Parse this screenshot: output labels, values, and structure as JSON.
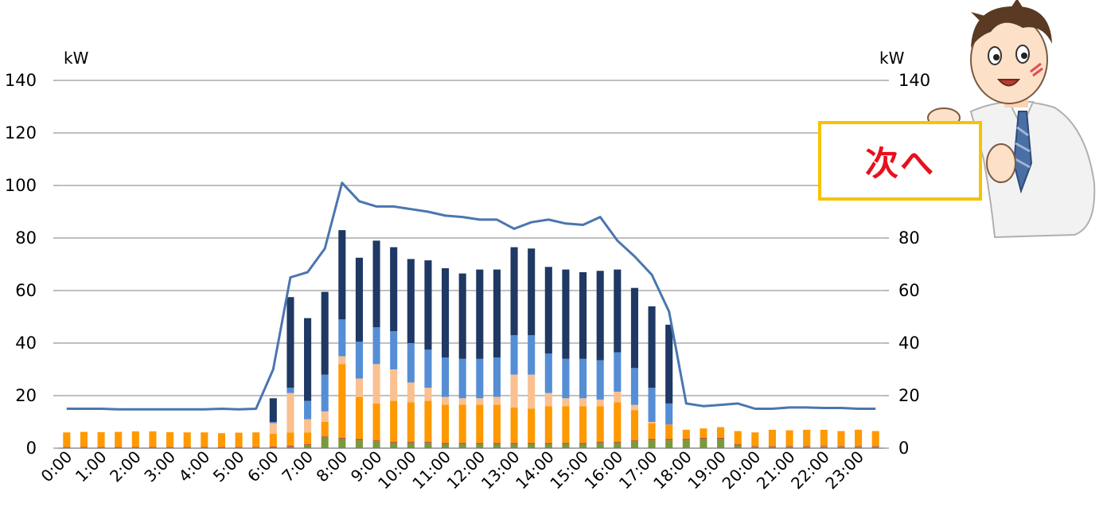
{
  "next_button": {
    "label": "次へ"
  },
  "mascot": {
    "icon": "businessman-holding-sign-icon"
  },
  "colors": {
    "line": "#4a76b0",
    "series": [
      "#7a9a3a",
      "#c0504d",
      "#ff9900",
      "#fac090",
      "#558ed5",
      "#1f3864"
    ],
    "grid": "#9a9a9a",
    "sign_border": "#f5c400",
    "sign_text": "#e8101e"
  },
  "chart_data": {
    "type": "bar",
    "stacked": true,
    "yunit_left": "kW",
    "yunit_right": "kW",
    "ylim": [
      0,
      140
    ],
    "yticks": [
      "0",
      "20",
      "40",
      "60",
      "80",
      "100",
      "120",
      "140"
    ],
    "grid": true,
    "xticks": [
      "0:00",
      "1:00",
      "2:00",
      "3:00",
      "4:00",
      "5:00",
      "6:00",
      "7:00",
      "8:00",
      "9:00",
      "10:00",
      "11:00",
      "12:00",
      "13:00",
      "14:00",
      "15:00",
      "16:00",
      "17:00",
      "18:00",
      "19:00",
      "20:00",
      "21:00",
      "22:00",
      "23:00"
    ],
    "categories": [
      "0:00",
      "0:30",
      "1:00",
      "1:30",
      "2:00",
      "2:30",
      "3:00",
      "3:30",
      "4:00",
      "4:30",
      "5:00",
      "5:30",
      "6:00",
      "6:30",
      "7:00",
      "7:30",
      "8:00",
      "8:30",
      "9:00",
      "9:30",
      "10:00",
      "10:30",
      "11:00",
      "11:30",
      "12:00",
      "12:30",
      "13:00",
      "13:30",
      "14:00",
      "14:30",
      "15:00",
      "15:30",
      "16:00",
      "16:30",
      "17:00",
      "17:30",
      "18:00",
      "18:30",
      "19:00",
      "19:30",
      "20:00",
      "20:30",
      "21:00",
      "21:30",
      "22:00",
      "22:30",
      "23:00",
      "23:30"
    ],
    "series": [
      {
        "values": [
          0.2,
          0.2,
          0.2,
          0.2,
          0.2,
          0.2,
          0.2,
          0.2,
          0.2,
          0.2,
          0.2,
          0.2,
          0.3,
          0.5,
          1.0,
          4.0,
          3.5,
          3.0,
          2.5,
          2.0,
          2.0,
          2.0,
          1.5,
          1.5,
          1.5,
          1.5,
          1.5,
          1.5,
          1.5,
          1.5,
          1.5,
          2.0,
          2.0,
          2.5,
          3.0,
          3.0,
          3.0,
          3.5,
          3.5,
          1.0,
          0.5,
          0.5,
          0.5,
          0.5,
          0.5,
          0.5,
          0.5,
          0.5
        ]
      },
      {
        "values": [
          0.3,
          0.3,
          0.3,
          0.3,
          0.3,
          0.3,
          0.3,
          0.3,
          0.3,
          0.3,
          0.3,
          0.3,
          0.4,
          0.5,
          0.5,
          0.5,
          0.5,
          0.5,
          0.5,
          0.5,
          0.5,
          0.5,
          0.5,
          0.5,
          0.5,
          0.5,
          0.5,
          0.5,
          0.5,
          0.5,
          0.5,
          0.5,
          0.5,
          0.5,
          0.5,
          0.5,
          0.5,
          0.5,
          0.5,
          0.5,
          0.3,
          0.3,
          0.3,
          0.3,
          0.3,
          0.3,
          0.3,
          0.3
        ]
      },
      {
        "values": [
          5.5,
          5.7,
          5.6,
          5.7,
          5.9,
          5.9,
          5.6,
          5.5,
          5.5,
          5.2,
          5.4,
          5.5,
          4.8,
          5.0,
          4.5,
          5.5,
          28.0,
          16.0,
          14.0,
          15.5,
          15.0,
          15.5,
          14.5,
          14.5,
          14.5,
          14.5,
          13.5,
          13.0,
          14.0,
          14.0,
          14.0,
          13.5,
          15.0,
          11.5,
          6.0,
          5.5,
          3.5,
          3.5,
          4.0,
          5.0,
          5.2,
          6.2,
          6.0,
          6.2,
          6.2,
          5.7,
          6.2,
          5.7
        ]
      },
      {
        "values": [
          0,
          0,
          0,
          0,
          0,
          0,
          0,
          0,
          0,
          0,
          0,
          0,
          4.0,
          15.0,
          5.0,
          4.0,
          3.0,
          7.0,
          15.0,
          12.0,
          7.5,
          5.0,
          3.0,
          2.5,
          2.5,
          3.0,
          12.5,
          13.0,
          5.0,
          3.0,
          3.0,
          2.5,
          4.0,
          2.0,
          0.5,
          0,
          0,
          0,
          0,
          0,
          0,
          0,
          0,
          0,
          0,
          0,
          0,
          0
        ]
      },
      {
        "values": [
          0,
          0,
          0,
          0,
          0,
          0,
          0,
          0,
          0,
          0,
          0,
          0,
          0.5,
          2.0,
          7.0,
          14.0,
          14.0,
          14.0,
          14.0,
          14.5,
          15.0,
          14.5,
          15.0,
          15.0,
          15.0,
          15.0,
          15.0,
          15.0,
          15.0,
          15.0,
          15.0,
          15.0,
          15.0,
          14.0,
          13.0,
          8.0,
          0,
          0,
          0,
          0,
          0,
          0,
          0,
          0,
          0,
          0,
          0,
          0
        ]
      },
      {
        "values": [
          0,
          0,
          0,
          0,
          0,
          0,
          0,
          0,
          0,
          0,
          0,
          0,
          9.0,
          34.5,
          31.5,
          31.5,
          34.0,
          32.0,
          33.0,
          32.0,
          32.0,
          34.0,
          34.0,
          32.5,
          34.0,
          33.5,
          33.5,
          33.0,
          33.0,
          34.0,
          33.0,
          34.0,
          31.5,
          30.5,
          31.0,
          30.0,
          0,
          0,
          0,
          0,
          0,
          0,
          0,
          0,
          0,
          0,
          0,
          0
        ]
      }
    ],
    "line": {
      "values": [
        15,
        15,
        15,
        14.8,
        14.8,
        14.8,
        14.8,
        14.8,
        14.8,
        15,
        14.8,
        15,
        30,
        65,
        67,
        76,
        101,
        94,
        92,
        92,
        91,
        90,
        88.5,
        88,
        87,
        87,
        83.5,
        86,
        87,
        85.5,
        85,
        88,
        79,
        73,
        66,
        52,
        17,
        16,
        16.5,
        17,
        15,
        15,
        15.5,
        15.5,
        15.3,
        15.3,
        15,
        15
      ]
    }
  }
}
